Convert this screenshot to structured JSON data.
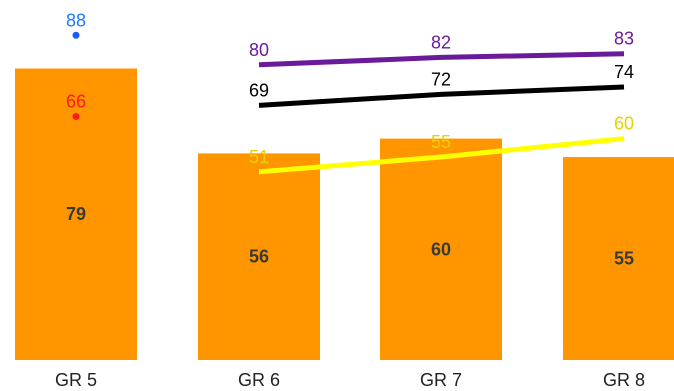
{
  "chart_data": {
    "type": "bar",
    "categories": [
      "GR 5",
      "GR 6",
      "GR 7",
      "GR 8"
    ],
    "ylim": [
      0,
      100
    ],
    "grid": false,
    "legend": "none",
    "bar_color": "#FF9600",
    "bars": [
      79,
      56,
      60,
      55
    ],
    "bar_label_color": "#3a3a3a",
    "series": [
      {
        "values": [
          88,
          null,
          null,
          null
        ],
        "display": "marker",
        "color": "#1a5cff",
        "label_color": "#1a7cff"
      },
      {
        "values": [
          66,
          null,
          null,
          null
        ],
        "display": "marker",
        "color": "#ff1a1a",
        "label_color": "#ff1a1a"
      },
      {
        "values": [
          null,
          80,
          82,
          83
        ],
        "display": "line",
        "color": "#6a1b9a",
        "label_color": "#6a1b9a"
      },
      {
        "values": [
          null,
          69,
          72,
          74
        ],
        "display": "line",
        "color": "#000000",
        "label_color": "#000000"
      },
      {
        "values": [
          null,
          51,
          55,
          60
        ],
        "display": "line",
        "color": "#ffff00",
        "label_color": "#e6d200"
      }
    ]
  }
}
